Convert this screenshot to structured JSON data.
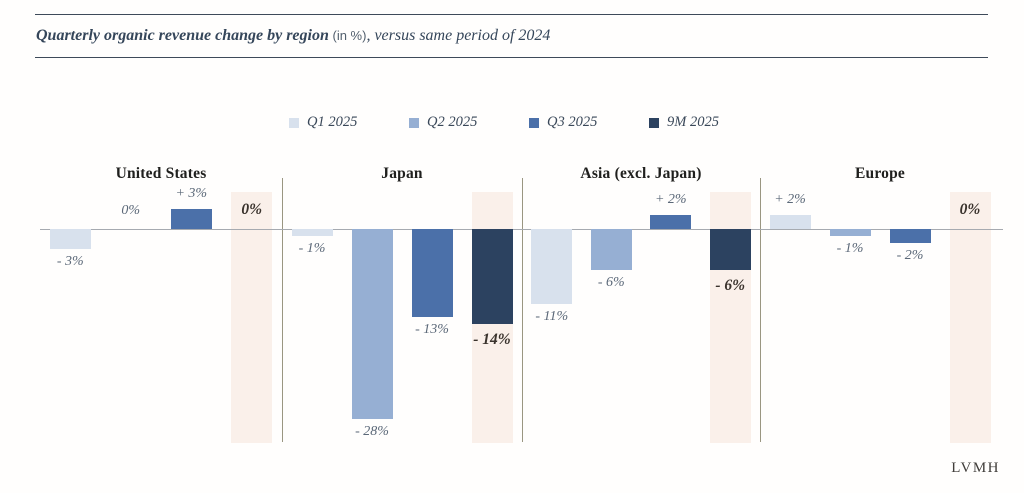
{
  "title": {
    "main": "Quarterly organic revenue change by region",
    "unit": " (in %)",
    "suffix": ", versus same period of 2024"
  },
  "legend": [
    {
      "label": "Q1 2025",
      "color": "#d8e1ed"
    },
    {
      "label": "Q2 2025",
      "color": "#96afd3"
    },
    {
      "label": "Q3 2025",
      "color": "#4b70a9"
    },
    {
      "label": "9M 2025",
      "color": "#2c4260"
    }
  ],
  "footer": {
    "brand": "LVMH"
  },
  "chart_data": {
    "type": "bar",
    "title": "Quarterly organic revenue change by region (in %), versus same period of 2024",
    "unit": "%",
    "categories": [
      "United States",
      "Japan",
      "Asia (excl. Japan)",
      "Europe"
    ],
    "series_names": [
      "Q1 2025",
      "Q2 2025",
      "Q3 2025",
      "9M 2025"
    ],
    "series_colors": [
      "#d8e1ed",
      "#96afd3",
      "#4b70a9",
      "#2c4260"
    ],
    "highlight_band_color": "#faf0ea",
    "regions": [
      {
        "name": "United States",
        "values": [
          -3,
          0,
          3,
          0
        ],
        "labels": [
          "- 3%",
          "0%",
          "+ 3%",
          "0%"
        ]
      },
      {
        "name": "Japan",
        "values": [
          -1,
          -28,
          -13,
          -14
        ],
        "labels": [
          "- 1%",
          "- 28%",
          "- 13%",
          "- 14%"
        ]
      },
      {
        "name": "Asia (excl. Japan)",
        "values": [
          -11,
          -6,
          2,
          -6
        ],
        "labels": [
          "- 11%",
          "- 6%",
          "+ 2%",
          "- 6%"
        ]
      },
      {
        "name": "Europe",
        "values": [
          2,
          -1,
          -2,
          0
        ],
        "labels": [
          "+ 2%",
          "- 1%",
          "- 2%",
          "0%"
        ]
      }
    ],
    "axis": {
      "baseline_value": 0,
      "ylim": [
        -30,
        5
      ],
      "grid": false,
      "legend_position": "top"
    }
  }
}
